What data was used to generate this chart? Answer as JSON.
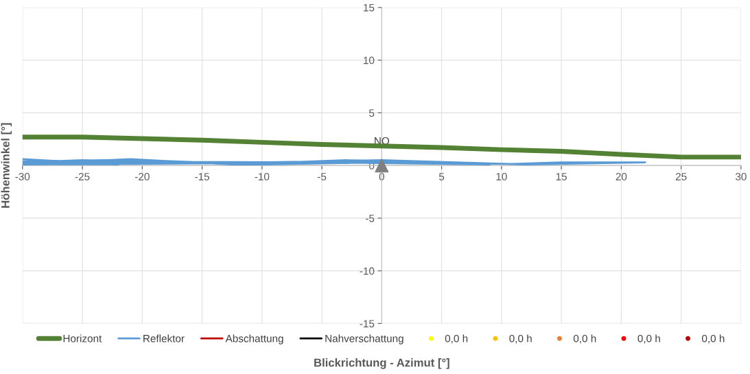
{
  "chart_data": {
    "type": "line",
    "xlabel": "Blickrichtung - Azimut [°]",
    "ylabel": "Höhenwinkel [°]",
    "xlim": [
      -30,
      30
    ],
    "ylim": [
      -15,
      15
    ],
    "xticks": [
      -30,
      -25,
      -20,
      -15,
      -10,
      -5,
      0,
      5,
      10,
      15,
      20,
      25,
      30
    ],
    "yticks": [
      -15,
      -10,
      -5,
      0,
      5,
      10,
      15
    ],
    "grid": true,
    "legend": "bottom",
    "marker": "none",
    "series": [
      {
        "name": "Horizont",
        "color": "#548235",
        "x": [
          -30,
          -25,
          -20,
          -15,
          -10,
          -5,
          0,
          5,
          10,
          15,
          20,
          25,
          30
        ],
        "values": [
          2.7,
          2.7,
          2.55,
          2.4,
          2.2,
          2.0,
          1.85,
          1.7,
          1.5,
          1.35,
          1.05,
          0.8,
          0.8
        ]
      },
      {
        "name": "Reflektor",
        "color": "#5b9bd5",
        "x": [
          -30,
          -22,
          -30,
          -25,
          -19,
          -30,
          -21,
          -12.5,
          -3,
          0,
          9,
          -5,
          -30,
          -20,
          -10,
          0,
          11,
          15,
          22,
          12,
          0,
          -15,
          -30
        ],
        "values": [
          0.6,
          0.1,
          0.3,
          0.5,
          0.35,
          0.15,
          0.6,
          0.1,
          0.5,
          0.4,
          0.1,
          0.3,
          0.4,
          0.5,
          0.1,
          0.3,
          0.15,
          0.3,
          0.3,
          0.1,
          0.5,
          0.2,
          0.1
        ]
      },
      {
        "name": "Abschattung",
        "color": "#c00000"
      },
      {
        "name": "Nahverschattung",
        "color": "#000000"
      },
      {
        "name": "0,0 h",
        "type": "scatter",
        "color": "#ffff00"
      },
      {
        "name": "0,0 h",
        "type": "scatter",
        "color": "#ffc000"
      },
      {
        "name": "0,0 h",
        "type": "scatter",
        "color": "#ed7d31"
      },
      {
        "name": "0,0 h",
        "type": "scatter",
        "color": "#ff0000"
      },
      {
        "name": "0,0 h",
        "type": "scatter",
        "color": "#c00000"
      },
      {
        "type": "scatter",
        "marker": "triangle",
        "color": "#808080",
        "x": [
          0
        ],
        "values": [
          0
        ]
      }
    ],
    "annotations": [
      {
        "text": "NO",
        "x": 0,
        "y": 0
      }
    ]
  }
}
